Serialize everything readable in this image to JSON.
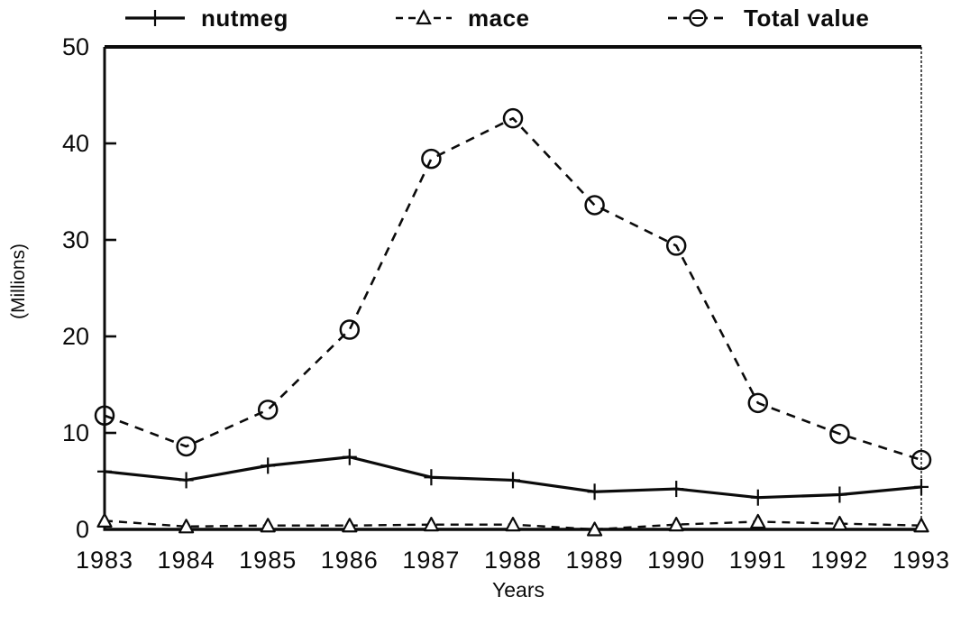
{
  "page": {
    "background": "#ffffff",
    "ink": "#0b0b0b"
  },
  "chart_data": {
    "type": "line",
    "x": [
      1983,
      1984,
      1985,
      1986,
      1987,
      1988,
      1989,
      1990,
      1991,
      1992,
      1993
    ],
    "series": [
      {
        "name": "nutmeg",
        "line": "solid",
        "marker": "plus",
        "values": [
          6.0,
          5.1,
          6.6,
          7.5,
          5.4,
          5.1,
          3.9,
          4.2,
          3.3,
          3.6,
          4.4
        ]
      },
      {
        "name": "mace",
        "line": "dashed",
        "marker": "triangle-open",
        "values": [
          0.9,
          0.3,
          0.4,
          0.4,
          0.5,
          0.5,
          0.0,
          0.5,
          0.8,
          0.6,
          0.4
        ]
      },
      {
        "name": "Total value",
        "line": "dashed",
        "marker": "circle-open",
        "values": [
          11.8,
          8.6,
          12.4,
          20.7,
          38.4,
          42.6,
          33.6,
          29.4,
          13.1,
          9.9,
          7.2
        ]
      }
    ],
    "xlabel": "Years",
    "ylabel": "(Millions)",
    "ylim": [
      0,
      50
    ],
    "yticks": [
      0,
      10,
      20,
      30,
      40,
      50
    ],
    "grid": false,
    "legend_position": "top",
    "frame": "box"
  }
}
